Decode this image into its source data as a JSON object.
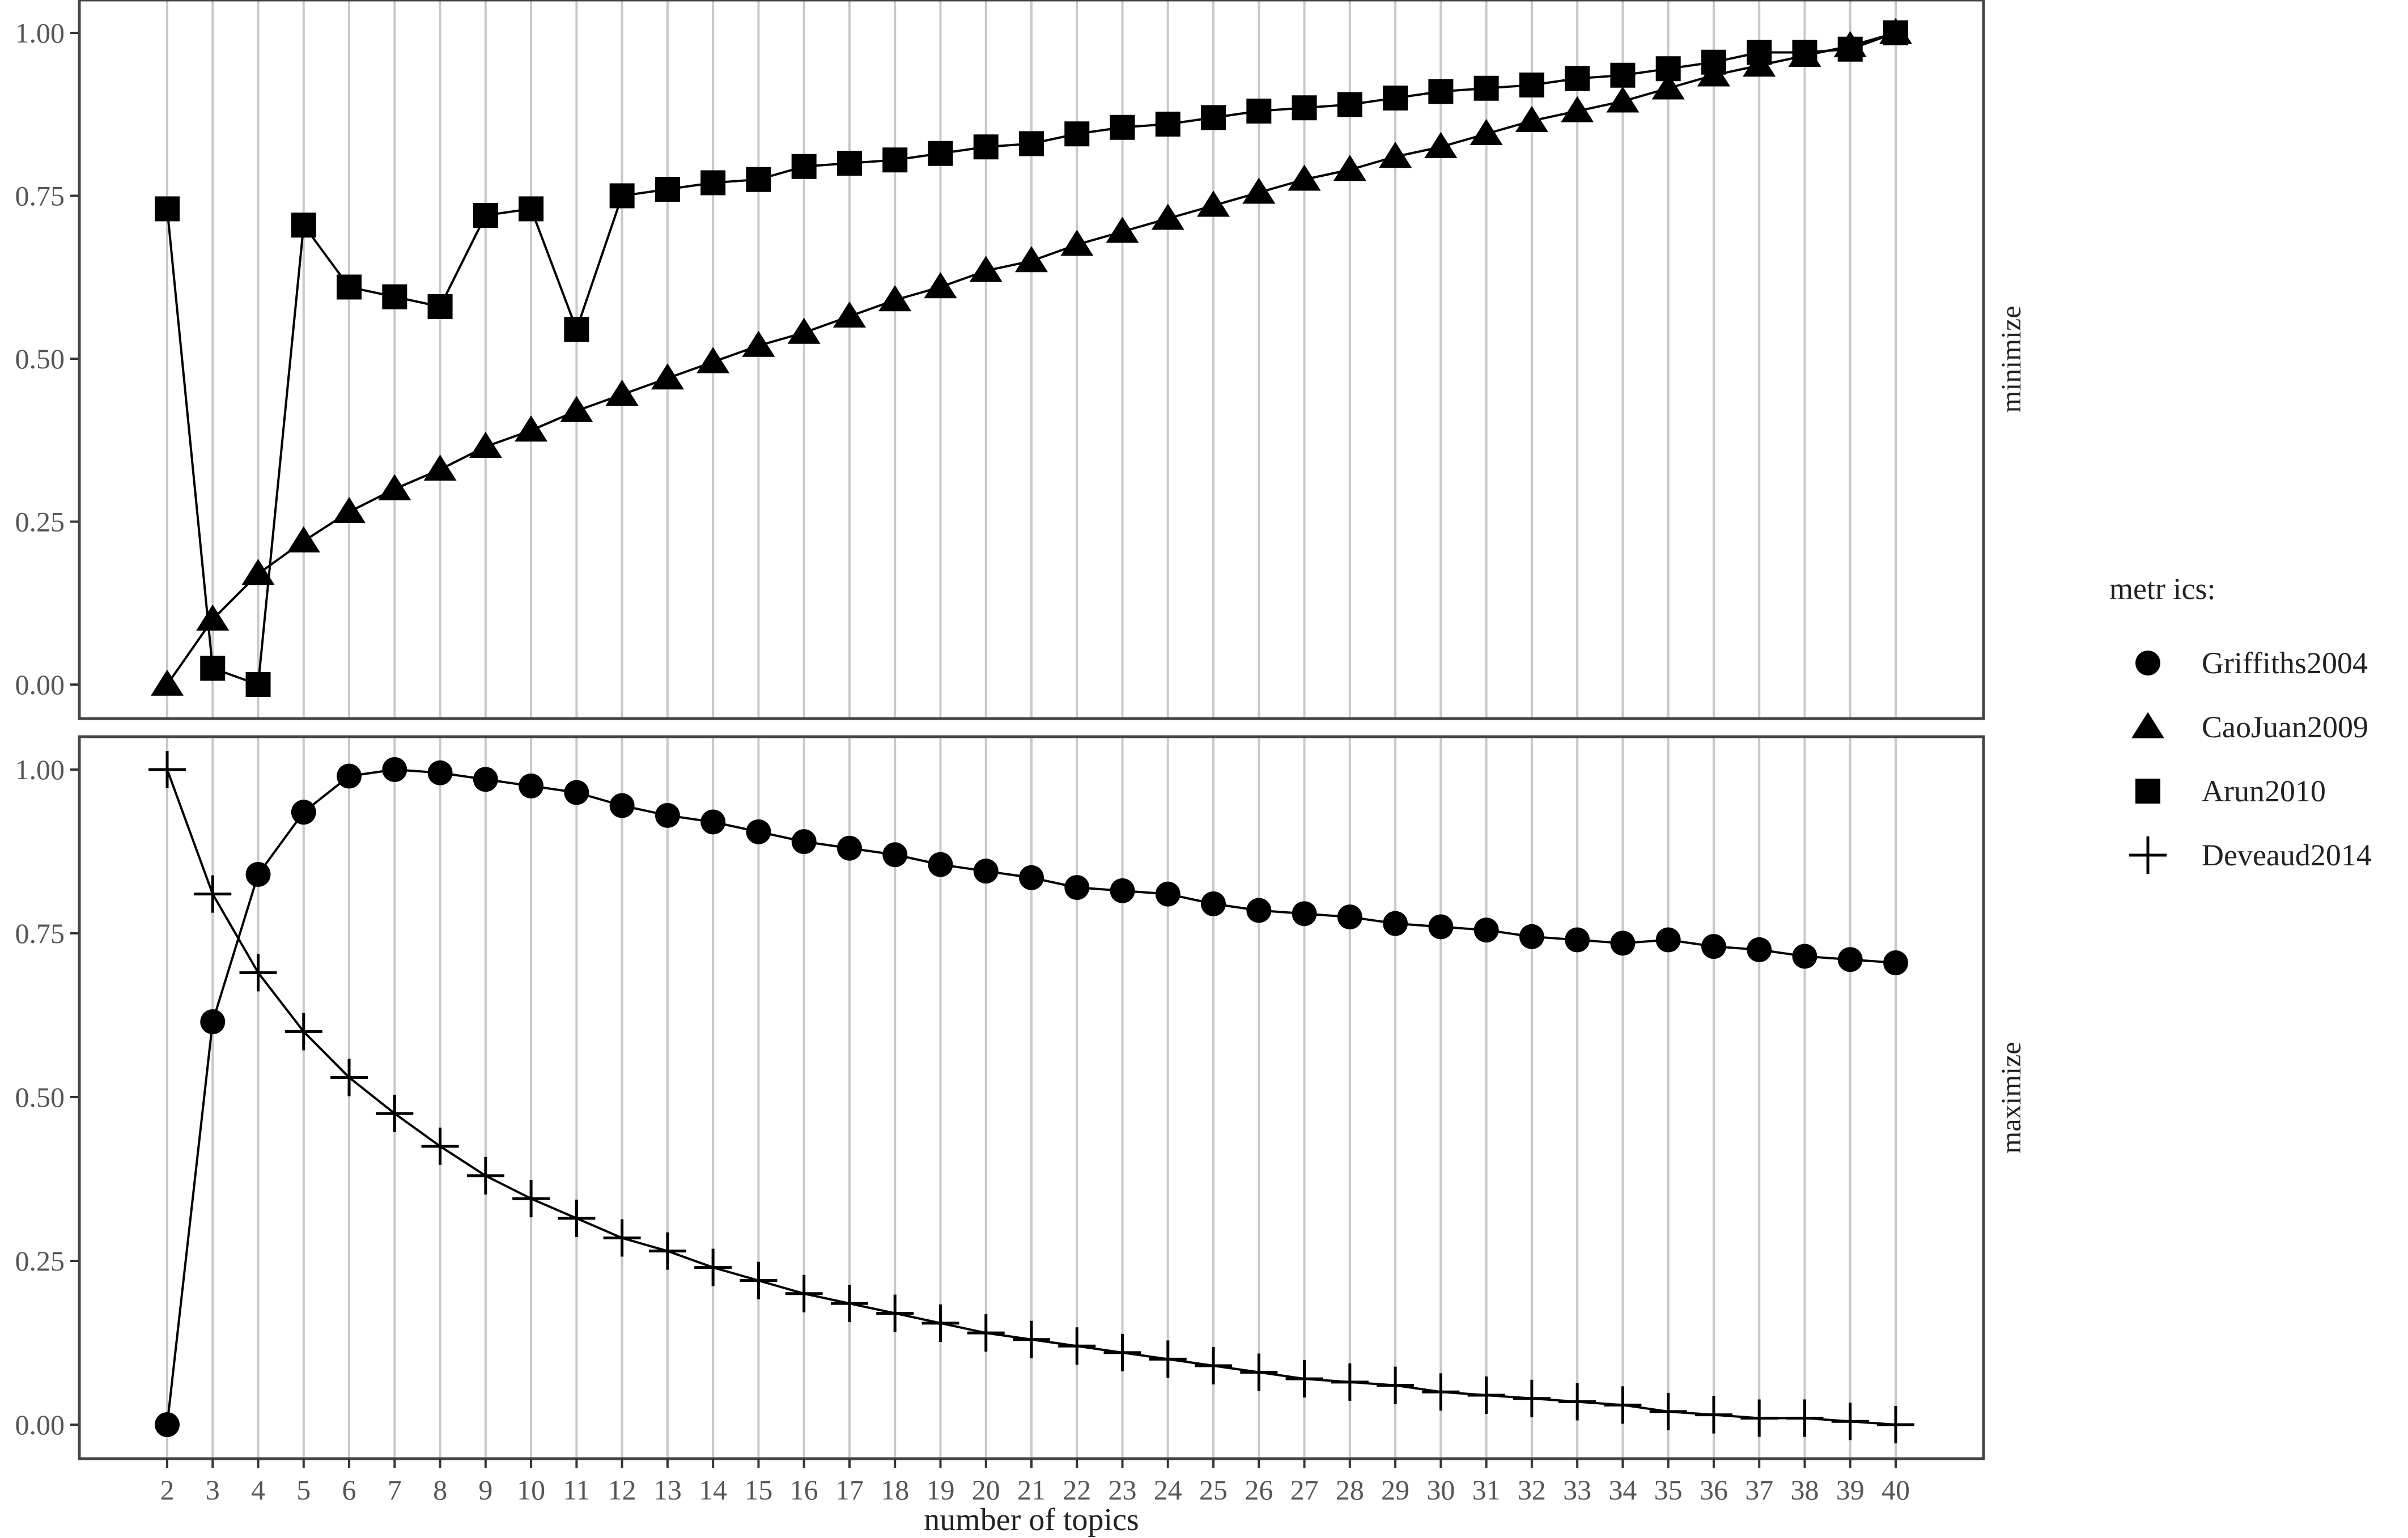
{
  "chart_data": {
    "type": "line",
    "xlabel": "number of topics",
    "x": [
      2,
      3,
      4,
      5,
      6,
      7,
      8,
      9,
      10,
      11,
      12,
      13,
      14,
      15,
      16,
      17,
      18,
      19,
      20,
      21,
      22,
      23,
      24,
      25,
      26,
      27,
      28,
      29,
      30,
      31,
      32,
      33,
      34,
      35,
      36,
      37,
      38,
      39,
      40
    ],
    "y_ticks": [
      "0.00",
      "0.25",
      "0.50",
      "0.75",
      "1.00"
    ],
    "ylim": [
      0,
      1
    ],
    "grid": "vertical major lines at each x",
    "legend": {
      "title": "metr ics:",
      "placement": "right",
      "entries": [
        {
          "name": "Griffiths2004",
          "marker": "circle"
        },
        {
          "name": "CaoJuan2009",
          "marker": "triangle"
        },
        {
          "name": "Arun2010",
          "marker": "square"
        },
        {
          "name": "Deveaud2014",
          "marker": "plus"
        }
      ]
    },
    "panels": [
      {
        "strip_label": "minimize",
        "series": [
          {
            "name": "CaoJuan2009",
            "marker": "triangle",
            "values": [
              0.0,
              0.1,
              0.17,
              0.22,
              0.265,
              0.3,
              0.33,
              0.365,
              0.39,
              0.42,
              0.445,
              0.47,
              0.495,
              0.52,
              0.54,
              0.565,
              0.59,
              0.61,
              0.635,
              0.65,
              0.675,
              0.695,
              0.715,
              0.735,
              0.755,
              0.775,
              0.79,
              0.81,
              0.825,
              0.845,
              0.865,
              0.88,
              0.895,
              0.915,
              0.935,
              0.95,
              0.965,
              0.98,
              1.0
            ]
          },
          {
            "name": "Arun2010",
            "marker": "square",
            "values": [
              0.73,
              0.025,
              0.0,
              0.705,
              0.61,
              0.595,
              0.58,
              0.72,
              0.73,
              0.545,
              0.75,
              0.76,
              0.77,
              0.775,
              0.795,
              0.8,
              0.805,
              0.815,
              0.825,
              0.83,
              0.845,
              0.855,
              0.86,
              0.87,
              0.88,
              0.885,
              0.89,
              0.9,
              0.91,
              0.915,
              0.92,
              0.93,
              0.935,
              0.945,
              0.955,
              0.97,
              0.97,
              0.975,
              1.0
            ]
          }
        ]
      },
      {
        "strip_label": "maximize",
        "series": [
          {
            "name": "Griffiths2004",
            "marker": "circle",
            "values": [
              0.0,
              0.615,
              0.84,
              0.935,
              0.99,
              1.0,
              0.995,
              0.985,
              0.975,
              0.965,
              0.945,
              0.93,
              0.92,
              0.905,
              0.89,
              0.88,
              0.87,
              0.855,
              0.845,
              0.835,
              0.82,
              0.815,
              0.81,
              0.795,
              0.785,
              0.78,
              0.775,
              0.765,
              0.76,
              0.755,
              0.745,
              0.74,
              0.735,
              0.74,
              0.73,
              0.725,
              0.715,
              0.71,
              0.705
            ]
          },
          {
            "name": "Deveaud2014",
            "marker": "plus",
            "values": [
              1.0,
              0.81,
              0.69,
              0.6,
              0.53,
              0.475,
              0.425,
              0.38,
              0.345,
              0.315,
              0.285,
              0.265,
              0.24,
              0.22,
              0.2,
              0.185,
              0.17,
              0.155,
              0.14,
              0.13,
              0.12,
              0.11,
              0.1,
              0.09,
              0.08,
              0.07,
              0.065,
              0.06,
              0.05,
              0.045,
              0.04,
              0.035,
              0.03,
              0.02,
              0.015,
              0.01,
              0.01,
              0.005,
              0.0
            ]
          }
        ]
      }
    ]
  }
}
